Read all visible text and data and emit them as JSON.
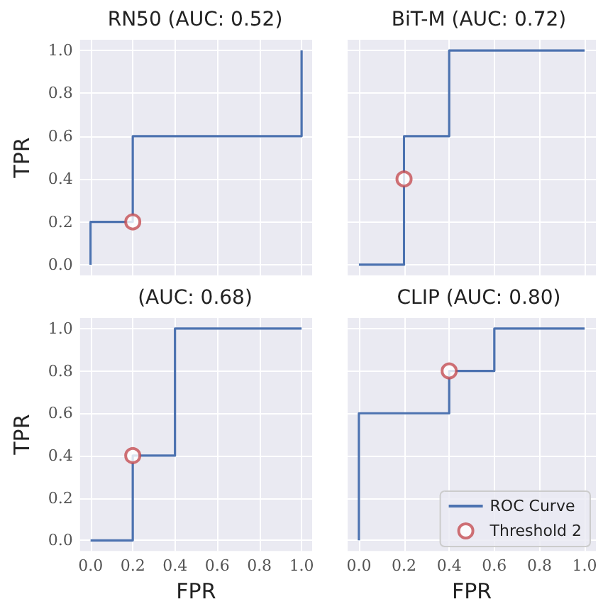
{
  "chart_data": [
    {
      "type": "line",
      "title": "RN50 (AUC: 0.52)",
      "ylabel": "TPR",
      "tick_labels": "y",
      "grid": true,
      "legend": false,
      "xlim": [
        -0.05,
        1.05
      ],
      "ylim": [
        -0.05,
        1.05
      ],
      "xticks": [
        {
          "value": 0,
          "label": null
        },
        {
          "value": 0.2,
          "label": null
        },
        {
          "value": 0.4,
          "label": null
        },
        {
          "value": 0.6,
          "label": null
        },
        {
          "value": 0.8,
          "label": null
        },
        {
          "value": 1,
          "label": null
        }
      ],
      "yticks": [
        {
          "value": 0,
          "label": "0.0"
        },
        {
          "value": 0.2,
          "label": "0.2"
        },
        {
          "value": 0.4,
          "label": "0.4"
        },
        {
          "value": 0.6,
          "label": "0.6"
        },
        {
          "value": 0.8,
          "label": "0.8"
        },
        {
          "value": 1,
          "label": "1.0"
        }
      ],
      "series": [
        {
          "color": "#4c72b0",
          "marker": "none",
          "x": [
            0,
            0,
            0.2,
            0.2,
            1,
            1
          ],
          "values": [
            0,
            0.2,
            0.2,
            0.6,
            0.6,
            1
          ]
        },
        {
          "type": "scatter",
          "color": "#c44e52",
          "marker": "circle",
          "x": [
            0.2
          ],
          "values": [
            0.2
          ]
        }
      ]
    },
    {
      "type": "line",
      "title": "BiT-M (AUC: 0.72)",
      "tick_labels": false,
      "grid": true,
      "legend": false,
      "xlim": [
        -0.05,
        1.05
      ],
      "ylim": [
        -0.05,
        1.05
      ],
      "xticks": [
        {
          "value": 0,
          "label": null
        },
        {
          "value": 0.2,
          "label": null
        },
        {
          "value": 0.4,
          "label": null
        },
        {
          "value": 0.6,
          "label": null
        },
        {
          "value": 0.8,
          "label": null
        },
        {
          "value": 1,
          "label": null
        }
      ],
      "yticks": [
        {
          "value": 0,
          "label": null
        },
        {
          "value": 0.2,
          "label": null
        },
        {
          "value": 0.4,
          "label": null
        },
        {
          "value": 0.6,
          "label": null
        },
        {
          "value": 0.8,
          "label": null
        },
        {
          "value": 1,
          "label": null
        }
      ],
      "series": [
        {
          "color": "#4c72b0",
          "marker": "none",
          "x": [
            0,
            0.2,
            0.2,
            0.4,
            0.4,
            1
          ],
          "values": [
            0,
            0,
            0.6,
            0.6,
            1,
            1
          ]
        },
        {
          "type": "scatter",
          "color": "#c44e52",
          "marker": "circle",
          "x": [
            0.2
          ],
          "values": [
            0.4
          ]
        }
      ]
    },
    {
      "type": "line",
      "title": "(AUC: 0.68)",
      "xlabel": "FPR",
      "ylabel": "TPR",
      "grid": true,
      "legend": false,
      "xlim": [
        -0.05,
        1.05
      ],
      "ylim": [
        -0.05,
        1.05
      ],
      "xticks": [
        {
          "value": 0,
          "label": "0.0"
        },
        {
          "value": 0.2,
          "label": "0.2"
        },
        {
          "value": 0.4,
          "label": "0.4"
        },
        {
          "value": 0.6,
          "label": "0.6"
        },
        {
          "value": 0.8,
          "label": "0.8"
        },
        {
          "value": 1,
          "label": "1.0"
        }
      ],
      "yticks": [
        {
          "value": 0,
          "label": "0.0"
        },
        {
          "value": 0.2,
          "label": "0.2"
        },
        {
          "value": 0.4,
          "label": "0.4"
        },
        {
          "value": 0.6,
          "label": "0.6"
        },
        {
          "value": 0.8,
          "label": "0.8"
        },
        {
          "value": 1,
          "label": "1.0"
        }
      ],
      "series": [
        {
          "color": "#4c72b0",
          "marker": "none",
          "x": [
            0,
            0.2,
            0.2,
            0.4,
            0.4,
            1
          ],
          "values": [
            0,
            0,
            0.4,
            0.4,
            1,
            1
          ]
        },
        {
          "type": "scatter",
          "color": "#c44e52",
          "marker": "circle",
          "x": [
            0.2
          ],
          "values": [
            0.4
          ]
        }
      ]
    },
    {
      "type": "line",
      "title": "CLIP (AUC: 0.80)",
      "xlabel": "FPR",
      "tick_labels": "x",
      "grid": true,
      "legend": "bottom right",
      "xlim": [
        -0.05,
        1.05
      ],
      "ylim": [
        -0.05,
        1.05
      ],
      "xticks": [
        {
          "value": 0,
          "label": "0.0"
        },
        {
          "value": 0.2,
          "label": "0.2"
        },
        {
          "value": 0.4,
          "label": "0.4"
        },
        {
          "value": 0.6,
          "label": "0.6"
        },
        {
          "value": 0.8,
          "label": "0.8"
        },
        {
          "value": 1,
          "label": "1.0"
        }
      ],
      "yticks": [
        {
          "value": 0,
          "label": null
        },
        {
          "value": 0.2,
          "label": null
        },
        {
          "value": 0.4,
          "label": null
        },
        {
          "value": 0.6,
          "label": null
        },
        {
          "value": 0.8,
          "label": null
        },
        {
          "value": 1,
          "label": null
        }
      ],
      "series": [
        {
          "name": "ROC Curve",
          "color": "#4c72b0",
          "marker": "none",
          "x": [
            0,
            0,
            0.4,
            0.4,
            0.6,
            0.6,
            1
          ],
          "values": [
            0,
            0.6,
            0.6,
            0.8,
            0.8,
            1,
            1
          ]
        },
        {
          "type": "scatter",
          "name": "Threshold 2",
          "color": "#c44e52",
          "marker": "circle",
          "x": [
            0.4
          ],
          "values": [
            0.8
          ]
        }
      ]
    }
  ]
}
